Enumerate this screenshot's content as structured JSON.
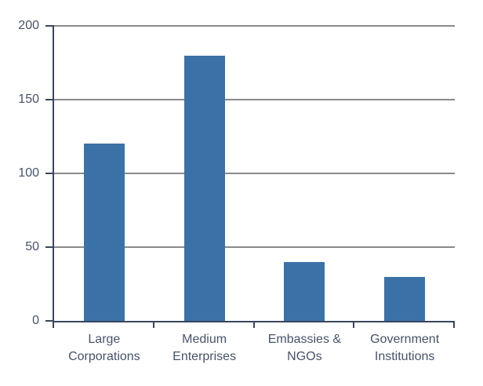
{
  "chart_data": {
    "type": "bar",
    "categories": [
      "Large Corporations",
      "Medium Enterprises",
      "Embassies & NGOs",
      "Government Institutions"
    ],
    "values": [
      120,
      180,
      40,
      30
    ],
    "title": "",
    "xlabel": "",
    "ylabel": "",
    "ylim": [
      0,
      200
    ],
    "ytick_interval": 50,
    "ytick_labels": [
      "0",
      "50",
      "100",
      "150",
      "200"
    ],
    "grid": true,
    "legend_position": "none",
    "colors": {
      "bar_fill": "#3A72A8",
      "axis": "#3A455E",
      "gridline": "#8A8A8A",
      "text": "#47536A",
      "background": "#FFFFFF"
    }
  }
}
